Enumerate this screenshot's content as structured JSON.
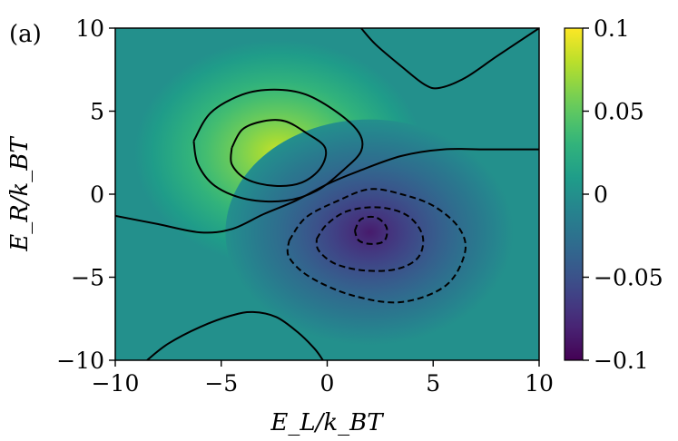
{
  "chart_data": {
    "type": "heatmap",
    "panel_label": "(a)",
    "xlabel": "E_L/k_BT",
    "ylabel": "E_R/k_BT",
    "xlim": [
      -10,
      10
    ],
    "ylim": [
      -10,
      10
    ],
    "x_ticks": [
      -10,
      -5,
      0,
      5,
      10
    ],
    "y_ticks": [
      -10,
      -5,
      0,
      5,
      10
    ],
    "x_tick_labels": [
      "−10",
      "−5",
      "0",
      "5",
      "10"
    ],
    "y_tick_labels": [
      "−10",
      "−5",
      "0",
      "5",
      "10"
    ],
    "colormap": "viridis",
    "color_range": [
      -0.1,
      0.1
    ],
    "colorbar_ticks": [
      -0.1,
      -0.05,
      0,
      0.05,
      0.1
    ],
    "colorbar_tick_labels": [
      "−0.1",
      "−0.05",
      "0",
      "0.05",
      "0.1"
    ],
    "field": {
      "background": 0.0,
      "extrema": [
        {
          "type": "max",
          "x": -2.3,
          "y": 2.5,
          "value": 0.085
        },
        {
          "type": "min",
          "x": 2.0,
          "y": -2.3,
          "value": -0.085
        }
      ]
    },
    "contours": [
      {
        "level": 0.06,
        "style": "solid",
        "points": [
          [
            -4.5,
            2.8
          ],
          [
            -4.0,
            3.9
          ],
          [
            -3.0,
            4.4
          ],
          [
            -2.0,
            4.4
          ],
          [
            -1.0,
            3.7
          ],
          [
            -0.1,
            2.8
          ],
          [
            -0.3,
            1.6
          ],
          [
            -1.2,
            0.7
          ],
          [
            -2.5,
            0.5
          ],
          [
            -3.8,
            0.9
          ],
          [
            -4.5,
            1.8
          ],
          [
            -4.5,
            2.8
          ]
        ]
      },
      {
        "level": 0.03,
        "style": "solid",
        "points": [
          [
            -6.3,
            3.2
          ],
          [
            -5.5,
            4.9
          ],
          [
            -4.0,
            6.0
          ],
          [
            -2.5,
            6.3
          ],
          [
            -1.0,
            6.0
          ],
          [
            0.5,
            4.9
          ],
          [
            1.5,
            3.7
          ],
          [
            1.6,
            2.6
          ],
          [
            0.8,
            1.5
          ],
          [
            -0.5,
            0.2
          ],
          [
            -2.0,
            -0.4
          ],
          [
            -3.8,
            -0.3
          ],
          [
            -5.3,
            0.5
          ],
          [
            -6.1,
            1.8
          ],
          [
            -6.3,
            3.2
          ]
        ]
      },
      {
        "level": 0.0,
        "style": "solid",
        "points": [
          [
            -10,
            -1.3
          ],
          [
            -8.0,
            -1.8
          ],
          [
            -6.0,
            -2.3
          ],
          [
            -4.5,
            -2.1
          ],
          [
            -3.0,
            -1.2
          ],
          [
            -1.5,
            -0.4
          ],
          [
            0.0,
            0.6
          ],
          [
            1.5,
            1.4
          ],
          [
            3.5,
            2.3
          ],
          [
            5.5,
            2.7
          ],
          [
            7.5,
            2.7
          ],
          [
            10,
            2.7
          ]
        ]
      },
      {
        "level": 0.0,
        "style": "solid",
        "points": [
          [
            1.6,
            10
          ],
          [
            2.3,
            9.0
          ],
          [
            3.5,
            7.7
          ],
          [
            4.6,
            6.6
          ],
          [
            5.3,
            6.4
          ],
          [
            6.5,
            7.0
          ],
          [
            8.0,
            8.3
          ],
          [
            10,
            10
          ]
        ]
      },
      {
        "level": 0.0,
        "style": "solid",
        "points": [
          [
            -8.5,
            -10
          ],
          [
            -7.5,
            -9.0
          ],
          [
            -6.0,
            -8.0
          ],
          [
            -4.5,
            -7.3
          ],
          [
            -3.5,
            -7.1
          ],
          [
            -2.4,
            -7.4
          ],
          [
            -1.4,
            -8.3
          ],
          [
            -0.6,
            -9.3
          ],
          [
            -0.2,
            -10
          ]
        ]
      },
      {
        "level": -0.03,
        "style": "dashed",
        "points": [
          [
            -1.8,
            -2.8
          ],
          [
            -1.0,
            -1.4
          ],
          [
            0.5,
            -0.4
          ],
          [
            2.0,
            0.3
          ],
          [
            3.5,
            0.0
          ],
          [
            5.0,
            -0.7
          ],
          [
            6.2,
            -2.0
          ],
          [
            6.5,
            -3.5
          ],
          [
            5.6,
            -5.5
          ],
          [
            3.5,
            -6.5
          ],
          [
            1.2,
            -6.1
          ],
          [
            -0.8,
            -5.0
          ],
          [
            -1.8,
            -3.8
          ],
          [
            -1.8,
            -2.8
          ]
        ]
      },
      {
        "level": -0.06,
        "style": "dashed",
        "points": [
          [
            -0.5,
            -2.7
          ],
          [
            0.0,
            -1.8
          ],
          [
            1.0,
            -1.0
          ],
          [
            2.5,
            -0.8
          ],
          [
            3.8,
            -1.3
          ],
          [
            4.5,
            -2.5
          ],
          [
            4.3,
            -3.8
          ],
          [
            3.3,
            -4.5
          ],
          [
            1.8,
            -4.6
          ],
          [
            0.4,
            -4.2
          ],
          [
            -0.4,
            -3.4
          ],
          [
            -0.5,
            -2.7
          ]
        ]
      },
      {
        "level": -0.08,
        "style": "dashed",
        "points": [
          [
            1.3,
            -2.2
          ],
          [
            1.6,
            -1.5
          ],
          [
            2.3,
            -1.4
          ],
          [
            2.8,
            -2.0
          ],
          [
            2.7,
            -2.8
          ],
          [
            2.1,
            -3.0
          ],
          [
            1.5,
            -2.8
          ],
          [
            1.3,
            -2.2
          ]
        ]
      }
    ]
  }
}
